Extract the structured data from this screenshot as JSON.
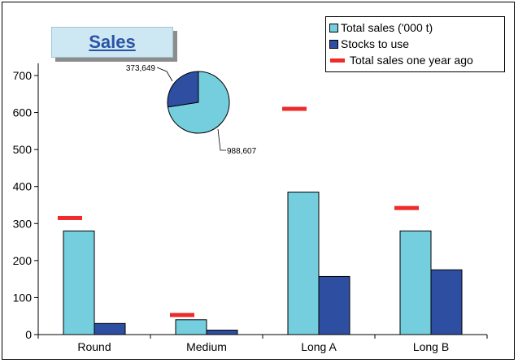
{
  "chart_data": {
    "type": "bar",
    "title": "Sales",
    "categories": [
      "Round",
      "Medium",
      "Long A",
      "Long B"
    ],
    "series": [
      {
        "name": "Total sales ('000 t)",
        "values": [
          280,
          40,
          385,
          280
        ],
        "color": "#74cedd"
      },
      {
        "name": "Stocks to use",
        "values": [
          30,
          12,
          157,
          175
        ],
        "color": "#2e4ea2"
      },
      {
        "name": "Total sales one year ago",
        "values": [
          315,
          53,
          610,
          342
        ],
        "color": "#ee2a2a",
        "marker": "dash"
      }
    ],
    "yticks": [
      0,
      100,
      200,
      300,
      400,
      500,
      600,
      700
    ],
    "ylim": [
      0,
      700
    ],
    "grid": false,
    "legend_position": "top-right",
    "inset_pie": {
      "slices": [
        {
          "value": 988607,
          "label": "988,607",
          "color": "#74cedd"
        },
        {
          "value": 373649,
          "label": "373,649",
          "color": "#2e4ea2"
        }
      ]
    }
  }
}
